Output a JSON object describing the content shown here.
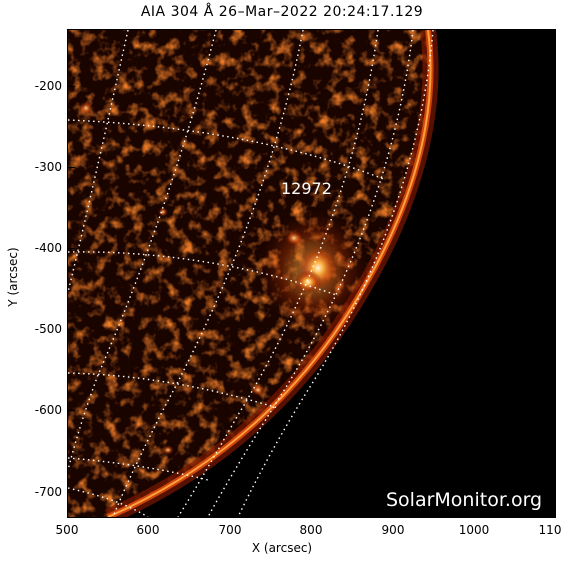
{
  "title": "AIA 304 Å 26–Mar–2022  20:24:17.129",
  "x_axis": {
    "label": "X (arcsec)",
    "ticks": [
      "500",
      "600",
      "700",
      "800",
      "900",
      "1000",
      "110"
    ]
  },
  "y_axis": {
    "label": "Y (arcsec)",
    "ticks": [
      "-200",
      "-300",
      "-400",
      "-500",
      "-600",
      "-700"
    ]
  },
  "region_label": "12972",
  "watermark": "SolarMonitor.org",
  "colors": {
    "background": "#000000",
    "grid": "#ffffff",
    "limb": "#ff7a1a",
    "disk_dark": "#1a0400",
    "active_region_core": "#fff2c8"
  }
}
